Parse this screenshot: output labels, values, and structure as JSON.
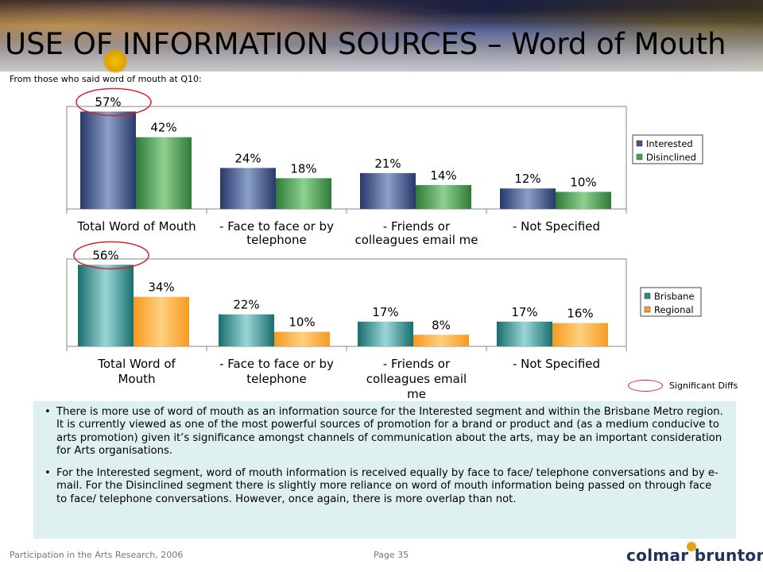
{
  "header": {
    "title": "USE OF INFORMATION SOURCES – Word of Mouth",
    "subtitle": "From those who said word of mouth at Q10:"
  },
  "chart_data": [
    {
      "type": "bar",
      "categories": [
        [
          "Total Word of Mouth"
        ],
        [
          "- Face to face or by",
          "telephone"
        ],
        [
          "- Friends or",
          "colleagues email me"
        ],
        [
          "- Not Specified"
        ]
      ],
      "series": [
        {
          "name": "Interested",
          "values": [
            57,
            24,
            21,
            12
          ],
          "labels": [
            "57%",
            "24%",
            "21%",
            "12%"
          ],
          "color": "#3e5690"
        },
        {
          "name": "Disinclined",
          "values": [
            42,
            18,
            14,
            10
          ],
          "labels": [
            "42%",
            "18%",
            "14%",
            "10%"
          ],
          "color": "#4e9e54"
        }
      ],
      "ylim": [
        0,
        60
      ],
      "legend": "right",
      "highlight": "Total Word of Mouth / Interested"
    },
    {
      "type": "bar",
      "categories": [
        [
          "Total Word of",
          "Mouth"
        ],
        [
          "- Face to face or by",
          "telephone"
        ],
        [
          "- Friends or",
          "colleagues email",
          "me"
        ],
        [
          "- Not Specified"
        ]
      ],
      "series": [
        {
          "name": "Brisbane",
          "values": [
            56,
            22,
            17,
            17
          ],
          "labels": [
            "56%",
            "22%",
            "17%",
            "17%"
          ],
          "color": "#2f8a8a"
        },
        {
          "name": "Regional",
          "values": [
            34,
            10,
            8,
            16
          ],
          "labels": [
            "34%",
            "10%",
            "8%",
            "16%"
          ],
          "color": "#f5a030"
        }
      ],
      "ylim": [
        0,
        60
      ],
      "legend": "right",
      "highlight": "Total Word of Mouth / Brisbane"
    }
  ],
  "significance_legend": "Significant Diffs",
  "notes": [
    "There is more use of word of mouth as an information source for the Interested segment and within the Brisbane Metro region.  It is currently viewed as one of the most powerful sources of promotion for a brand or product and (as a medium conducive to arts promotion) given it’s significance amongst channels of communication about the arts, may be an important consideration for Arts organisations.",
    "For the Interested segment, word of mouth information is received equally by face to face/ telephone conversations and by e-mail. For the Disinclined segment there is slightly more reliance on word of mouth information being passed on through face to face/ telephone conversations.  However, once again, there is more overlap than not."
  ],
  "bullet": "•",
  "footer": {
    "source": "Participation in the Arts Research, 2006",
    "page": "Page 35",
    "logo": "colmar brunton"
  }
}
